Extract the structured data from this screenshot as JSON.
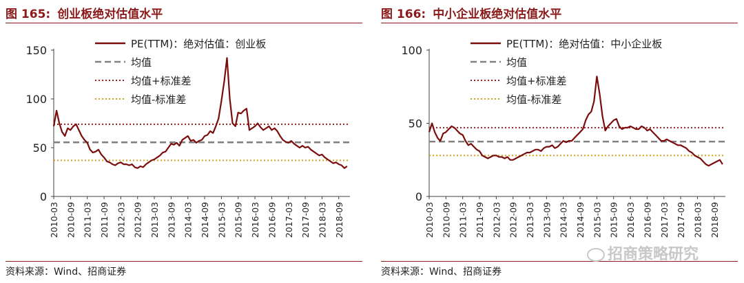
{
  "charts": [
    {
      "figure_no": "图 165:",
      "figure_title": "创业板绝对估值水平",
      "source": "资料来源：Wind、招商证券"
    },
    {
      "figure_no": "图 166:",
      "figure_title": "中小企业板绝对估值水平",
      "source": "资料来源：Wind、招商证券"
    }
  ],
  "watermark": "招商策略研究",
  "colors": {
    "pe_line": "#7a0c0c",
    "mean_line": "#808080",
    "upper_band": "#9b1b1b",
    "lower_band": "#d4a017",
    "axis": "#404040",
    "title": "#8b1a1a"
  },
  "chart_data": [
    {
      "type": "line",
      "title": "创业板绝对估值水平",
      "x_start": "2010-03",
      "x_end": "2019-01",
      "xtick_labels": [
        "2010-03",
        "2010-09",
        "2011-03",
        "2011-09",
        "2012-03",
        "2012-09",
        "2013-03",
        "2013-09",
        "2014-03",
        "2014-09",
        "2015-03",
        "2015-09",
        "2016-03",
        "2016-09",
        "2017-03",
        "2017-09",
        "2018-03",
        "2018-09"
      ],
      "ylim": [
        0,
        150
      ],
      "yticks": [
        0,
        50,
        100,
        150
      ],
      "series": [
        {
          "name": "PE(TTM)：绝对估值：创业板",
          "style": "solid",
          "x": [
            "2010-03",
            "2010-04",
            "2010-05",
            "2010-06",
            "2010-07",
            "2010-08",
            "2010-09",
            "2010-10",
            "2010-11",
            "2010-12",
            "2011-01",
            "2011-02",
            "2011-03",
            "2011-04",
            "2011-05",
            "2011-06",
            "2011-07",
            "2011-08",
            "2011-09",
            "2011-10",
            "2011-11",
            "2011-12",
            "2012-01",
            "2012-02",
            "2012-03",
            "2012-04",
            "2012-05",
            "2012-06",
            "2012-07",
            "2012-08",
            "2012-09",
            "2012-10",
            "2012-11",
            "2012-12",
            "2013-01",
            "2013-02",
            "2013-03",
            "2013-04",
            "2013-05",
            "2013-06",
            "2013-07",
            "2013-08",
            "2013-09",
            "2013-10",
            "2013-11",
            "2013-12",
            "2014-01",
            "2014-02",
            "2014-03",
            "2014-04",
            "2014-05",
            "2014-06",
            "2014-07",
            "2014-08",
            "2014-09",
            "2014-10",
            "2014-11",
            "2014-12",
            "2015-01",
            "2015-02",
            "2015-03",
            "2015-04",
            "2015-05",
            "2015-06",
            "2015-07",
            "2015-08",
            "2015-09",
            "2015-10",
            "2015-11",
            "2015-12",
            "2016-01",
            "2016-02",
            "2016-03",
            "2016-04",
            "2016-05",
            "2016-06",
            "2016-07",
            "2016-08",
            "2016-09",
            "2016-10",
            "2016-11",
            "2016-12",
            "2017-01",
            "2017-02",
            "2017-03",
            "2017-04",
            "2017-05",
            "2017-06",
            "2017-07",
            "2017-08",
            "2017-09",
            "2017-10",
            "2017-11",
            "2017-12",
            "2018-01",
            "2018-02",
            "2018-03",
            "2018-04",
            "2018-05",
            "2018-06",
            "2018-07",
            "2018-08",
            "2018-09",
            "2018-10",
            "2018-11",
            "2018-12"
          ],
          "values": [
            72,
            88,
            75,
            66,
            62,
            70,
            68,
            72,
            74,
            68,
            62,
            58,
            55,
            48,
            45,
            46,
            48,
            43,
            40,
            36,
            35,
            33,
            32,
            34,
            35,
            33,
            33,
            32,
            33,
            30,
            29,
            31,
            30,
            33,
            35,
            37,
            38,
            40,
            42,
            45,
            46,
            50,
            54,
            53,
            55,
            52,
            58,
            60,
            62,
            57,
            58,
            55,
            57,
            58,
            62,
            63,
            67,
            65,
            72,
            80,
            98,
            118,
            142,
            100,
            75,
            72,
            86,
            85,
            88,
            90,
            68,
            70,
            72,
            75,
            71,
            68,
            70,
            72,
            68,
            70,
            67,
            62,
            58,
            56,
            55,
            57,
            54,
            52,
            50,
            52,
            50,
            51,
            48,
            46,
            44,
            42,
            43,
            40,
            38,
            36,
            34,
            35,
            33,
            32,
            29,
            31
          ]
        },
        {
          "name": "均值",
          "style": "dashed",
          "value": 55.5
        },
        {
          "name": "均值+标准差",
          "style": "dotted",
          "value": 74
        },
        {
          "name": "均值-标准差",
          "style": "dotted",
          "value": 37
        }
      ]
    },
    {
      "type": "line",
      "title": "中小企业板绝对估值水平",
      "x_start": "2010-03",
      "x_end": "2019-01",
      "xtick_labels": [
        "2010-03",
        "2010-09",
        "2011-03",
        "2011-09",
        "2012-03",
        "2012-09",
        "2013-03",
        "2013-09",
        "2014-03",
        "2014-09",
        "2015-03",
        "2015-09",
        "2016-03",
        "2016-09",
        "2017-03",
        "2017-09",
        "2018-03",
        "2018-09"
      ],
      "ylim": [
        0,
        100
      ],
      "yticks": [
        0,
        50,
        100
      ],
      "series": [
        {
          "name": "PE(TTM)：绝对估值：中小企业板",
          "style": "solid",
          "x": [
            "2010-03",
            "2010-04",
            "2010-05",
            "2010-06",
            "2010-07",
            "2010-08",
            "2010-09",
            "2010-10",
            "2010-11",
            "2010-12",
            "2011-01",
            "2011-02",
            "2011-03",
            "2011-04",
            "2011-05",
            "2011-06",
            "2011-07",
            "2011-08",
            "2011-09",
            "2011-10",
            "2011-11",
            "2011-12",
            "2012-01",
            "2012-02",
            "2012-03",
            "2012-04",
            "2012-05",
            "2012-06",
            "2012-07",
            "2012-08",
            "2012-09",
            "2012-10",
            "2012-11",
            "2012-12",
            "2013-01",
            "2013-02",
            "2013-03",
            "2013-04",
            "2013-05",
            "2013-06",
            "2013-07",
            "2013-08",
            "2013-09",
            "2013-10",
            "2013-11",
            "2013-12",
            "2014-01",
            "2014-02",
            "2014-03",
            "2014-04",
            "2014-05",
            "2014-06",
            "2014-07",
            "2014-08",
            "2014-09",
            "2014-10",
            "2014-11",
            "2014-12",
            "2015-01",
            "2015-02",
            "2015-03",
            "2015-04",
            "2015-05",
            "2015-06",
            "2015-07",
            "2015-08",
            "2015-09",
            "2015-10",
            "2015-11",
            "2015-12",
            "2016-01",
            "2016-02",
            "2016-03",
            "2016-04",
            "2016-05",
            "2016-06",
            "2016-07",
            "2016-08",
            "2016-09",
            "2016-10",
            "2016-11",
            "2016-12",
            "2017-01",
            "2017-02",
            "2017-03",
            "2017-04",
            "2017-05",
            "2017-06",
            "2017-07",
            "2017-08",
            "2017-09",
            "2017-10",
            "2017-11",
            "2017-12",
            "2018-01",
            "2018-02",
            "2018-03",
            "2018-04",
            "2018-05",
            "2018-06",
            "2018-07",
            "2018-08",
            "2018-09",
            "2018-10",
            "2018-11",
            "2018-12"
          ],
          "values": [
            44,
            50,
            44,
            40,
            38,
            43,
            44,
            46,
            48,
            47,
            45,
            43,
            42,
            38,
            35,
            36,
            34,
            32,
            31,
            28,
            27,
            26,
            27,
            28,
            28,
            27,
            27,
            26,
            27,
            25,
            25,
            26,
            27,
            28,
            29,
            30,
            30,
            31,
            32,
            32,
            31,
            33,
            34,
            34,
            35,
            33,
            34,
            36,
            38,
            37,
            38,
            38,
            40,
            42,
            44,
            46,
            52,
            56,
            58,
            65,
            82,
            70,
            55,
            45,
            48,
            50,
            52,
            53,
            48,
            46,
            47,
            47,
            48,
            47,
            46,
            46,
            48,
            47,
            45,
            46,
            44,
            42,
            40,
            38,
            38,
            39,
            38,
            37,
            36,
            35,
            35,
            34,
            33,
            31,
            30,
            28,
            27,
            26,
            24,
            22,
            21,
            22,
            23,
            24,
            25,
            22
          ]
        },
        {
          "name": "均值",
          "style": "dashed",
          "value": 37.5
        },
        {
          "name": "均值+标准差",
          "style": "dotted",
          "value": 47
        },
        {
          "name": "均值-标准差",
          "style": "dotted",
          "value": 28
        }
      ]
    }
  ]
}
